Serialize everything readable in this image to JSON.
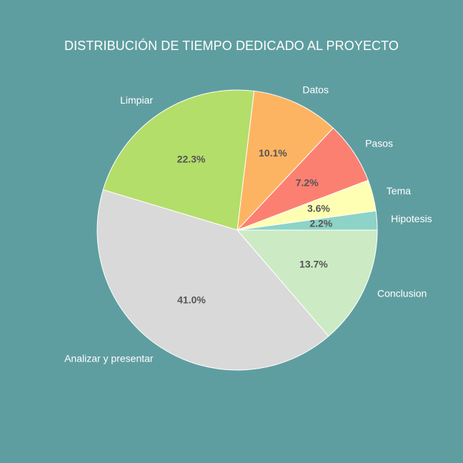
{
  "chart_data": {
    "type": "pie",
    "title": "DISTRIBUCIÓN DE TIEMPO DEDICADO AL PROYECTO",
    "categories": [
      "Hipotesis",
      "Tema",
      "Pasos",
      "Datos",
      "Limpiar",
      "Analizar y presentar",
      "Conclusion"
    ],
    "values": [
      2.2,
      3.6,
      7.2,
      10.1,
      22.3,
      41.0,
      13.7
    ],
    "value_labels": [
      "2.2%",
      "3.6%",
      "7.2%",
      "10.1%",
      "22.3%",
      "41.0%",
      "13.7%"
    ],
    "colors": [
      "#8dd3c7",
      "#ffffb3",
      "#fb8072",
      "#fdb462",
      "#b3de69",
      "#d9d9d9",
      "#ccebc5"
    ],
    "start_angle_deg": 0,
    "direction": "counterclockwise",
    "wedge_edge_color": "#ffffff",
    "legend": "none"
  },
  "background_color": "#5f9ea0"
}
